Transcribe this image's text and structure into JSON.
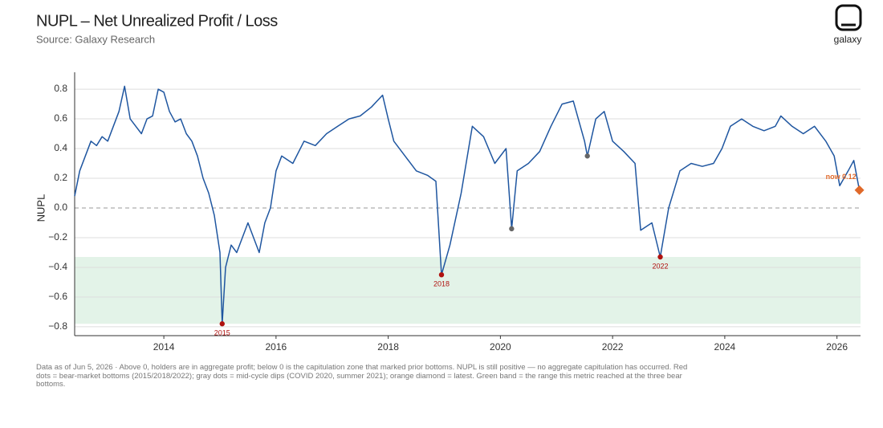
{
  "chart_data": {
    "type": "line",
    "title": "NUPL – Net Unrealized Profit / Loss",
    "subtitle": "Source: Galaxy Research",
    "brand": "galaxy",
    "ylabel": "NUPL",
    "note": "Data as of Jun 5, 2026 · Above 0, holders are in aggregate profit; below 0 is the capitulation zone that marked prior bottoms. NUPL is still positive — no aggregate capitulation has occurred. Red dots = bear-market bottoms (2015/2018/2022); gray dots = mid-cycle dips (COVID 2020, summer 2021); orange diamond = latest. Green band = the range this metric reached at the three bear bottoms.",
    "xlim": [
      2012.41,
      2026.42
    ],
    "xticks": [
      2014,
      2016,
      2018,
      2020,
      2022,
      2024,
      2026
    ],
    "ylim": [
      -0.86,
      0.914
    ],
    "yticks": [
      {
        "value": -0.8,
        "label": "−0.8"
      },
      {
        "value": -0.6,
        "label": "−0.6"
      },
      {
        "value": -0.4,
        "label": "−0.4"
      },
      {
        "value": -0.2,
        "label": "−0.2"
      },
      {
        "value": 0,
        "label": "0.0"
      },
      {
        "value": 0.2,
        "label": "0.2"
      },
      {
        "value": 0.4,
        "label": "0.4"
      },
      {
        "value": 0.6,
        "label": "0.6"
      },
      {
        "value": 0.8,
        "label": "0.8"
      }
    ],
    "grid": true,
    "band": [
      -0.78,
      -0.33
    ],
    "band_color": "#e3f3e8",
    "x": [
      2012.41,
      2012.5,
      2012.6,
      2012.7,
      2012.8,
      2012.9,
      2013.0,
      2013.1,
      2013.2,
      2013.3,
      2013.4,
      2013.5,
      2013.6,
      2013.7,
      2013.8,
      2013.9,
      2014.0,
      2014.1,
      2014.2,
      2014.3,
      2014.4,
      2014.5,
      2014.6,
      2014.7,
      2014.8,
      2014.9,
      2015.0,
      2015.04,
      2015.1,
      2015.2,
      2015.3,
      2015.4,
      2015.5,
      2015.6,
      2015.7,
      2015.8,
      2015.9,
      2016.0,
      2016.1,
      2016.3,
      2016.5,
      2016.7,
      2016.9,
      2017.1,
      2017.3,
      2017.5,
      2017.7,
      2017.9,
      2018.0,
      2018.1,
      2018.3,
      2018.5,
      2018.7,
      2018.85,
      2018.95,
      2019.1,
      2019.3,
      2019.5,
      2019.7,
      2019.9,
      2020.1,
      2020.2,
      2020.3,
      2020.5,
      2020.7,
      2020.9,
      2021.1,
      2021.3,
      2021.5,
      2021.55,
      2021.7,
      2021.85,
      2022.0,
      2022.2,
      2022.4,
      2022.5,
      2022.7,
      2022.85,
      2023.0,
      2023.2,
      2023.4,
      2023.6,
      2023.8,
      2023.95,
      2024.1,
      2024.3,
      2024.5,
      2024.7,
      2024.9,
      2025.0,
      2025.2,
      2025.4,
      2025.6,
      2025.8,
      2025.95,
      2026.05,
      2026.2,
      2026.3,
      2026.4
    ],
    "series": [
      {
        "name": "NUPL",
        "color": "#1f56a0",
        "values": [
          0.08,
          0.25,
          0.35,
          0.45,
          0.42,
          0.48,
          0.45,
          0.55,
          0.65,
          0.82,
          0.6,
          0.55,
          0.5,
          0.6,
          0.62,
          0.8,
          0.78,
          0.65,
          0.58,
          0.6,
          0.5,
          0.45,
          0.35,
          0.2,
          0.1,
          -0.05,
          -0.3,
          -0.78,
          -0.4,
          -0.25,
          -0.3,
          -0.2,
          -0.1,
          -0.2,
          -0.3,
          -0.1,
          0.0,
          0.25,
          0.35,
          0.3,
          0.45,
          0.42,
          0.5,
          0.55,
          0.6,
          0.62,
          0.68,
          0.76,
          0.6,
          0.45,
          0.35,
          0.25,
          0.22,
          0.18,
          -0.45,
          -0.25,
          0.1,
          0.55,
          0.48,
          0.3,
          0.4,
          -0.14,
          0.25,
          0.3,
          0.38,
          0.55,
          0.7,
          0.72,
          0.45,
          0.35,
          0.6,
          0.65,
          0.45,
          0.38,
          0.3,
          -0.15,
          -0.1,
          -0.33,
          0.0,
          0.25,
          0.3,
          0.28,
          0.3,
          0.4,
          0.55,
          0.6,
          0.55,
          0.52,
          0.55,
          0.62,
          0.55,
          0.5,
          0.55,
          0.45,
          0.35,
          0.15,
          0.25,
          0.32,
          0.12
        ]
      }
    ],
    "markers": [
      {
        "x": 2015.04,
        "y": -0.78,
        "label": "2015",
        "color": "#b0120f",
        "shape": "circle"
      },
      {
        "x": 2018.95,
        "y": -0.45,
        "label": "2018",
        "color": "#b0120f",
        "shape": "circle"
      },
      {
        "x": 2022.85,
        "y": -0.33,
        "label": "2022",
        "color": "#b0120f",
        "shape": "circle"
      },
      {
        "x": 2020.2,
        "y": -0.14,
        "color": "#666666",
        "shape": "circle"
      },
      {
        "x": 2021.55,
        "y": 0.35,
        "color": "#666666",
        "shape": "circle"
      },
      {
        "x": 2026.4,
        "y": 0.12,
        "label": "now 0.12",
        "color": "#e0692a",
        "shape": "diamond"
      }
    ]
  }
}
